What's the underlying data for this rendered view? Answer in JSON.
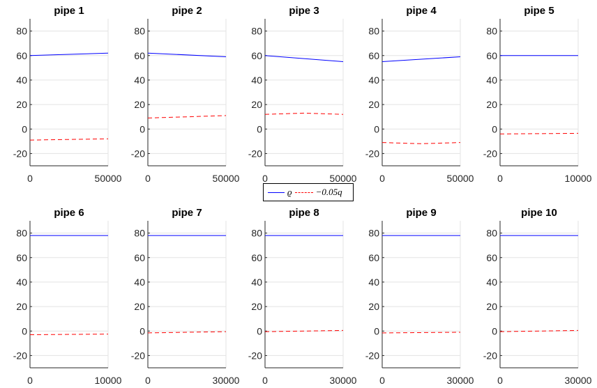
{
  "chart_data": [
    {
      "type": "line",
      "title": "pipe 1",
      "ylim": [
        -30,
        90
      ],
      "yticks": [
        -20,
        0,
        20,
        40,
        60,
        80
      ],
      "xlim": [
        0,
        50000
      ],
      "xticks": [
        0,
        50000
      ],
      "grid": true,
      "series": [
        {
          "name": "ρ",
          "color": "#0000ff",
          "style": "solid",
          "x": [
            0,
            50000
          ],
          "y": [
            60,
            62
          ]
        },
        {
          "name": "−0.05q",
          "color": "#ff0000",
          "style": "dashed",
          "x": [
            0,
            25000,
            50000
          ],
          "y": [
            -9,
            -8.5,
            -8
          ]
        }
      ]
    },
    {
      "type": "line",
      "title": "pipe 2",
      "ylim": [
        -30,
        90
      ],
      "yticks": [
        -20,
        0,
        20,
        40,
        60,
        80
      ],
      "xlim": [
        0,
        50000
      ],
      "xticks": [
        0,
        50000
      ],
      "grid": true,
      "series": [
        {
          "name": "ρ",
          "color": "#0000ff",
          "style": "solid",
          "x": [
            0,
            50000
          ],
          "y": [
            62,
            59
          ]
        },
        {
          "name": "−0.05q",
          "color": "#ff0000",
          "style": "dashed",
          "x": [
            0,
            25000,
            50000
          ],
          "y": [
            9,
            10,
            11
          ]
        }
      ]
    },
    {
      "type": "line",
      "title": "pipe 3",
      "ylim": [
        -30,
        90
      ],
      "yticks": [
        -20,
        0,
        20,
        40,
        60,
        80
      ],
      "xlim": [
        0,
        50000
      ],
      "xticks": [
        0,
        50000
      ],
      "grid": true,
      "series": [
        {
          "name": "ρ",
          "color": "#0000ff",
          "style": "solid",
          "x": [
            0,
            50000
          ],
          "y": [
            60,
            55
          ]
        },
        {
          "name": "−0.05q",
          "color": "#ff0000",
          "style": "dashed",
          "x": [
            0,
            25000,
            50000
          ],
          "y": [
            12,
            13,
            12
          ]
        }
      ]
    },
    {
      "type": "line",
      "title": "pipe 4",
      "ylim": [
        -30,
        90
      ],
      "yticks": [
        -20,
        0,
        20,
        40,
        60,
        80
      ],
      "xlim": [
        0,
        50000
      ],
      "xticks": [
        0,
        50000
      ],
      "grid": true,
      "series": [
        {
          "name": "ρ",
          "color": "#0000ff",
          "style": "solid",
          "x": [
            0,
            50000
          ],
          "y": [
            55,
            59
          ]
        },
        {
          "name": "−0.05q",
          "color": "#ff0000",
          "style": "dashed",
          "x": [
            0,
            25000,
            50000
          ],
          "y": [
            -11,
            -12,
            -11
          ]
        }
      ]
    },
    {
      "type": "line",
      "title": "pipe 5",
      "ylim": [
        -30,
        90
      ],
      "yticks": [
        -20,
        0,
        20,
        40,
        60,
        80
      ],
      "xlim": [
        0,
        10000
      ],
      "xticks": [
        0,
        10000
      ],
      "grid": true,
      "series": [
        {
          "name": "ρ",
          "color": "#0000ff",
          "style": "solid",
          "x": [
            0,
            10000
          ],
          "y": [
            60,
            60
          ]
        },
        {
          "name": "−0.05q",
          "color": "#ff0000",
          "style": "dashed",
          "x": [
            0,
            10000
          ],
          "y": [
            -4,
            -3.5
          ]
        }
      ]
    },
    {
      "type": "line",
      "title": "pipe 6",
      "ylim": [
        -30,
        90
      ],
      "yticks": [
        -20,
        0,
        20,
        40,
        60,
        80
      ],
      "xlim": [
        0,
        10000
      ],
      "xticks": [
        0,
        10000
      ],
      "grid": true,
      "series": [
        {
          "name": "ρ",
          "color": "#0000ff",
          "style": "solid",
          "x": [
            0,
            10000
          ],
          "y": [
            78,
            78
          ]
        },
        {
          "name": "−0.05q",
          "color": "#ff0000",
          "style": "dashed",
          "x": [
            0,
            10000
          ],
          "y": [
            -3,
            -2.5
          ]
        }
      ]
    },
    {
      "type": "line",
      "title": "pipe 7",
      "ylim": [
        -30,
        90
      ],
      "yticks": [
        -20,
        0,
        20,
        40,
        60,
        80
      ],
      "xlim": [
        0,
        30000
      ],
      "xticks": [
        0,
        30000
      ],
      "grid": true,
      "series": [
        {
          "name": "ρ",
          "color": "#0000ff",
          "style": "solid",
          "x": [
            0,
            30000
          ],
          "y": [
            78,
            78
          ]
        },
        {
          "name": "−0.05q",
          "color": "#ff0000",
          "style": "dashed",
          "x": [
            0,
            30000
          ],
          "y": [
            -1.5,
            -0.5
          ]
        }
      ]
    },
    {
      "type": "line",
      "title": "pipe 8",
      "ylim": [
        -30,
        90
      ],
      "yticks": [
        -20,
        0,
        20,
        40,
        60,
        80
      ],
      "xlim": [
        0,
        30000
      ],
      "xticks": [
        0,
        30000
      ],
      "grid": true,
      "series": [
        {
          "name": "ρ",
          "color": "#0000ff",
          "style": "solid",
          "x": [
            0,
            30000
          ],
          "y": [
            78,
            78
          ]
        },
        {
          "name": "−0.05q",
          "color": "#ff0000",
          "style": "dashed",
          "x": [
            0,
            30000
          ],
          "y": [
            -0.5,
            0.5
          ]
        }
      ]
    },
    {
      "type": "line",
      "title": "pipe 9",
      "ylim": [
        -30,
        90
      ],
      "yticks": [
        -20,
        0,
        20,
        40,
        60,
        80
      ],
      "xlim": [
        0,
        30000
      ],
      "xticks": [
        0,
        30000
      ],
      "grid": true,
      "series": [
        {
          "name": "ρ",
          "color": "#0000ff",
          "style": "solid",
          "x": [
            0,
            30000
          ],
          "y": [
            78,
            78
          ]
        },
        {
          "name": "−0.05q",
          "color": "#ff0000",
          "style": "dashed",
          "x": [
            0,
            30000
          ],
          "y": [
            -1.5,
            -1
          ]
        }
      ]
    },
    {
      "type": "line",
      "title": "pipe 10",
      "ylim": [
        -30,
        90
      ],
      "yticks": [
        -20,
        0,
        20,
        40,
        60,
        80
      ],
      "xlim": [
        0,
        30000
      ],
      "xticks": [
        0,
        30000
      ],
      "grid": true,
      "series": [
        {
          "name": "ρ",
          "color": "#0000ff",
          "style": "solid",
          "x": [
            0,
            30000
          ],
          "y": [
            78,
            78
          ]
        },
        {
          "name": "−0.05q",
          "color": "#ff0000",
          "style": "dashed",
          "x": [
            0,
            30000
          ],
          "y": [
            -0.5,
            0.5
          ]
        }
      ]
    }
  ],
  "legend": {
    "entry1": "ϱ",
    "entry2": "−0.05q"
  }
}
